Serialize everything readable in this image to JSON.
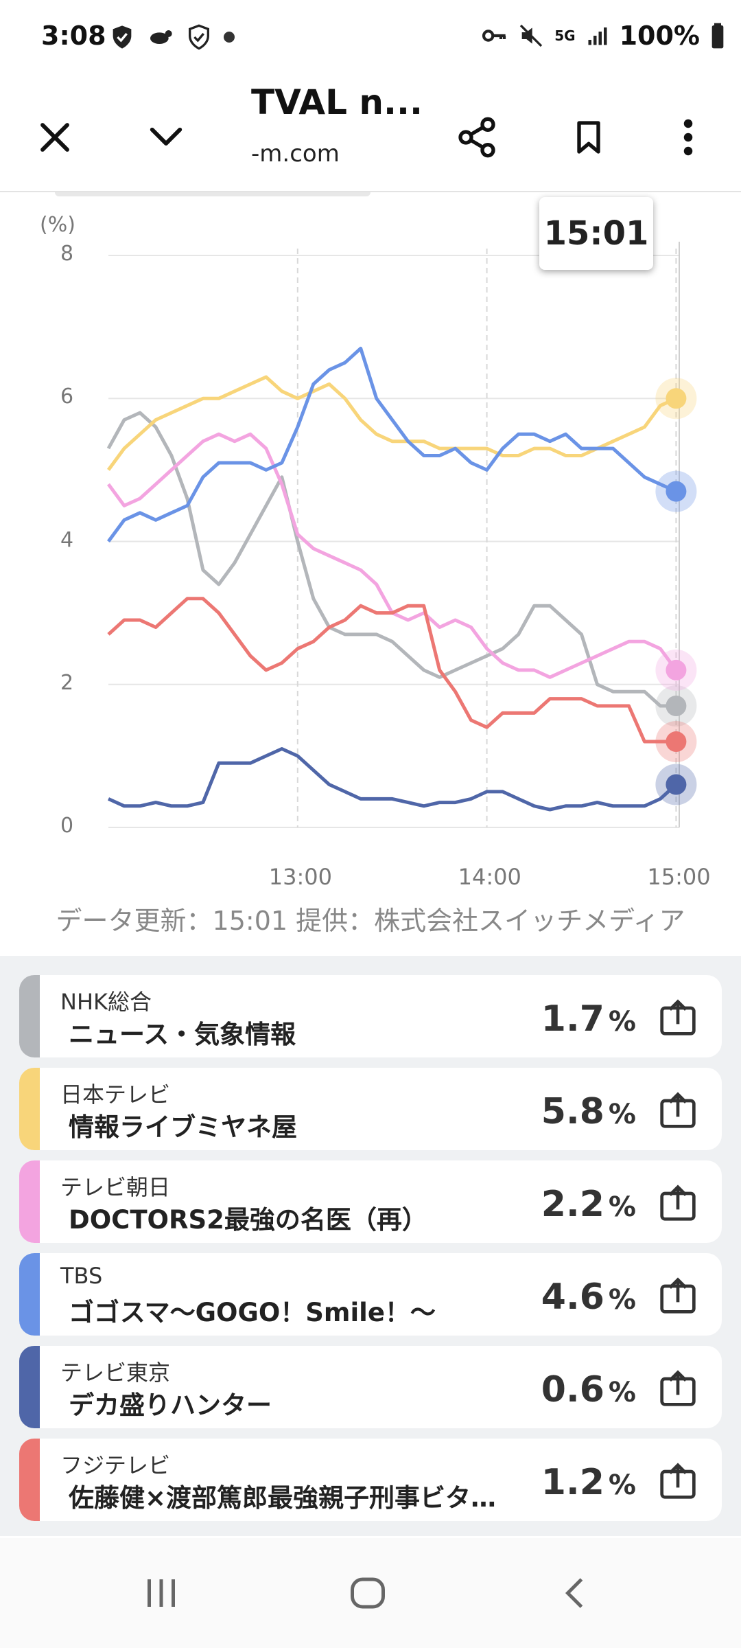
{
  "status": {
    "time": "3:08",
    "battery": "100%",
    "network": "5G",
    "left_icons": [
      "shield-check-icon",
      "animal-icon",
      "shield-outline-icon",
      "dot-icon"
    ],
    "right_icons": [
      "key-icon",
      "mute-icon",
      "network-5g-icon",
      "signal-icon",
      "battery-icon"
    ]
  },
  "toolbar": {
    "title": "TVAL n...",
    "url": "-m.com",
    "close_icon": "close-icon",
    "collapse_icon": "chevron-down-icon",
    "share_icon": "share-icon",
    "bookmark_icon": "bookmark-icon",
    "menu_icon": "more-vert-icon"
  },
  "chart_data": {
    "type": "line",
    "ylabel": "(%)",
    "ylim": [
      0,
      8
    ],
    "yticks": [
      "0",
      "2",
      "4",
      "6",
      "8"
    ],
    "xticks": [
      "13:00",
      "14:00",
      "15:00"
    ],
    "grid": true,
    "tooltip_label": "15:01",
    "x_start": "12:00",
    "x_end": "15:01",
    "series": [
      {
        "name": "NHK総合",
        "color": "#b3b6ba",
        "x": [
          "12:00",
          "12:05",
          "12:10",
          "12:15",
          "12:20",
          "12:25",
          "12:30",
          "12:35",
          "12:40",
          "12:45",
          "12:50",
          "12:55",
          "13:00",
          "13:05",
          "13:10",
          "13:15",
          "13:20",
          "13:25",
          "13:30",
          "13:35",
          "13:40",
          "13:45",
          "13:50",
          "13:55",
          "14:00",
          "14:05",
          "14:10",
          "14:15",
          "14:20",
          "14:25",
          "14:30",
          "14:35",
          "14:40",
          "14:45",
          "14:50",
          "14:55",
          "15:00"
        ],
        "values": [
          5.3,
          5.7,
          5.8,
          5.6,
          5.2,
          4.6,
          3.6,
          3.4,
          3.7,
          4.1,
          4.5,
          4.9,
          4.0,
          3.2,
          2.8,
          2.7,
          2.7,
          2.7,
          2.6,
          2.4,
          2.2,
          2.1,
          2.2,
          2.3,
          2.4,
          2.5,
          2.7,
          3.1,
          3.1,
          2.9,
          2.7,
          2.0,
          1.9,
          1.9,
          1.9,
          1.7,
          1.7
        ]
      },
      {
        "name": "日本テレビ",
        "color": "#f8d57a",
        "x": [
          "12:00",
          "12:05",
          "12:10",
          "12:15",
          "12:20",
          "12:25",
          "12:30",
          "12:35",
          "12:40",
          "12:45",
          "12:50",
          "12:55",
          "13:00",
          "13:05",
          "13:10",
          "13:15",
          "13:20",
          "13:25",
          "13:30",
          "13:35",
          "13:40",
          "13:45",
          "13:50",
          "13:55",
          "14:00",
          "14:05",
          "14:10",
          "14:15",
          "14:20",
          "14:25",
          "14:30",
          "14:35",
          "14:40",
          "14:45",
          "14:50",
          "14:55",
          "15:00"
        ],
        "values": [
          5.0,
          5.3,
          5.5,
          5.7,
          5.8,
          5.9,
          6.0,
          6.0,
          6.1,
          6.2,
          6.3,
          6.1,
          6.0,
          6.1,
          6.2,
          6.0,
          5.7,
          5.5,
          5.4,
          5.4,
          5.4,
          5.3,
          5.3,
          5.3,
          5.3,
          5.2,
          5.2,
          5.3,
          5.3,
          5.2,
          5.2,
          5.3,
          5.4,
          5.5,
          5.6,
          5.9,
          6.0
        ]
      },
      {
        "name": "テレビ朝日",
        "color": "#f3a4e0",
        "x": [
          "12:00",
          "12:05",
          "12:10",
          "12:15",
          "12:20",
          "12:25",
          "12:30",
          "12:35",
          "12:40",
          "12:45",
          "12:50",
          "12:55",
          "13:00",
          "13:05",
          "13:10",
          "13:15",
          "13:20",
          "13:25",
          "13:30",
          "13:35",
          "13:40",
          "13:45",
          "13:50",
          "13:55",
          "14:00",
          "14:05",
          "14:10",
          "14:15",
          "14:20",
          "14:25",
          "14:30",
          "14:35",
          "14:40",
          "14:45",
          "14:50",
          "14:55",
          "15:00"
        ],
        "values": [
          4.8,
          4.5,
          4.6,
          4.8,
          5.0,
          5.2,
          5.4,
          5.5,
          5.4,
          5.5,
          5.3,
          4.8,
          4.1,
          3.9,
          3.8,
          3.7,
          3.6,
          3.4,
          3.0,
          2.9,
          3.0,
          2.8,
          2.9,
          2.8,
          2.5,
          2.3,
          2.2,
          2.2,
          2.1,
          2.2,
          2.3,
          2.4,
          2.5,
          2.6,
          2.6,
          2.5,
          2.2
        ]
      },
      {
        "name": "TBS",
        "color": "#6a93e6",
        "x": [
          "12:00",
          "12:05",
          "12:10",
          "12:15",
          "12:20",
          "12:25",
          "12:30",
          "12:35",
          "12:40",
          "12:45",
          "12:50",
          "12:55",
          "13:00",
          "13:05",
          "13:10",
          "13:15",
          "13:20",
          "13:25",
          "13:30",
          "13:35",
          "13:40",
          "13:45",
          "13:50",
          "13:55",
          "14:00",
          "14:05",
          "14:10",
          "14:15",
          "14:20",
          "14:25",
          "14:30",
          "14:35",
          "14:40",
          "14:45",
          "14:50",
          "14:55",
          "15:00"
        ],
        "values": [
          4.0,
          4.3,
          4.4,
          4.3,
          4.4,
          4.5,
          4.9,
          5.1,
          5.1,
          5.1,
          5.0,
          5.1,
          5.6,
          6.2,
          6.4,
          6.5,
          6.7,
          6.0,
          5.7,
          5.4,
          5.2,
          5.2,
          5.3,
          5.1,
          5.0,
          5.3,
          5.5,
          5.5,
          5.4,
          5.5,
          5.3,
          5.3,
          5.3,
          5.1,
          4.9,
          4.8,
          4.7
        ]
      },
      {
        "name": "テレビ東京",
        "color": "#4f66a8",
        "x": [
          "12:00",
          "12:05",
          "12:10",
          "12:15",
          "12:20",
          "12:25",
          "12:30",
          "12:35",
          "12:40",
          "12:45",
          "12:50",
          "12:55",
          "13:00",
          "13:05",
          "13:10",
          "13:15",
          "13:20",
          "13:25",
          "13:30",
          "13:35",
          "13:40",
          "13:45",
          "13:50",
          "13:55",
          "14:00",
          "14:05",
          "14:10",
          "14:15",
          "14:20",
          "14:25",
          "14:30",
          "14:35",
          "14:40",
          "14:45",
          "14:50",
          "14:55",
          "15:00"
        ],
        "values": [
          0.4,
          0.3,
          0.3,
          0.35,
          0.3,
          0.3,
          0.35,
          0.9,
          0.9,
          0.9,
          1.0,
          1.1,
          1.0,
          0.8,
          0.6,
          0.5,
          0.4,
          0.4,
          0.4,
          0.35,
          0.3,
          0.35,
          0.35,
          0.4,
          0.5,
          0.5,
          0.4,
          0.3,
          0.25,
          0.3,
          0.3,
          0.35,
          0.3,
          0.3,
          0.3,
          0.4,
          0.6
        ]
      },
      {
        "name": "フジテレビ",
        "color": "#ec7773",
        "x": [
          "12:00",
          "12:05",
          "12:10",
          "12:15",
          "12:20",
          "12:25",
          "12:30",
          "12:35",
          "12:40",
          "12:45",
          "12:50",
          "12:55",
          "13:00",
          "13:05",
          "13:10",
          "13:15",
          "13:20",
          "13:25",
          "13:30",
          "13:35",
          "13:40",
          "13:45",
          "13:50",
          "13:55",
          "14:00",
          "14:05",
          "14:10",
          "14:15",
          "14:20",
          "14:25",
          "14:30",
          "14:35",
          "14:40",
          "14:45",
          "14:50",
          "14:55",
          "15:00"
        ],
        "values": [
          2.7,
          2.9,
          2.9,
          2.8,
          3.0,
          3.2,
          3.2,
          3.0,
          2.7,
          2.4,
          2.2,
          2.3,
          2.5,
          2.6,
          2.8,
          2.9,
          3.1,
          3.0,
          3.0,
          3.1,
          3.1,
          2.2,
          1.9,
          1.5,
          1.4,
          1.6,
          1.6,
          1.6,
          1.8,
          1.8,
          1.8,
          1.7,
          1.7,
          1.7,
          1.2,
          1.2,
          1.2
        ]
      }
    ]
  },
  "chart_footer": "データ更新：15:01  提供：株式会社スイッチメディア",
  "channels": [
    {
      "name": "NHK総合",
      "program": "ニュース・気象情報",
      "value": "1.7",
      "unit": "%",
      "color": "#b3b6ba"
    },
    {
      "name": "日本テレビ",
      "program": "情報ライブミヤネ屋",
      "value": "5.8",
      "unit": "%",
      "color": "#f8d57a"
    },
    {
      "name": "テレビ朝日",
      "program": "DOCTORS2最強の名医（再）",
      "value": "2.2",
      "unit": "%",
      "color": "#f3a4e0"
    },
    {
      "name": "TBS",
      "program": "ゴゴスマ〜GOGO！Smile！〜",
      "value": "4.6",
      "unit": "%",
      "color": "#6a93e6"
    },
    {
      "name": "テレビ東京",
      "program": "デカ盛りハンター",
      "value": "0.6",
      "unit": "%",
      "color": "#4f66a8"
    },
    {
      "name": "フジテレビ",
      "program": "佐藤健×渡部篤郎最強親子刑事ビタ…",
      "value": "1.2",
      "unit": "%",
      "color": "#ec7773"
    }
  ],
  "navbar": {
    "recents_icon": "recents-icon",
    "home_icon": "home-icon",
    "back_icon": "back-icon"
  }
}
